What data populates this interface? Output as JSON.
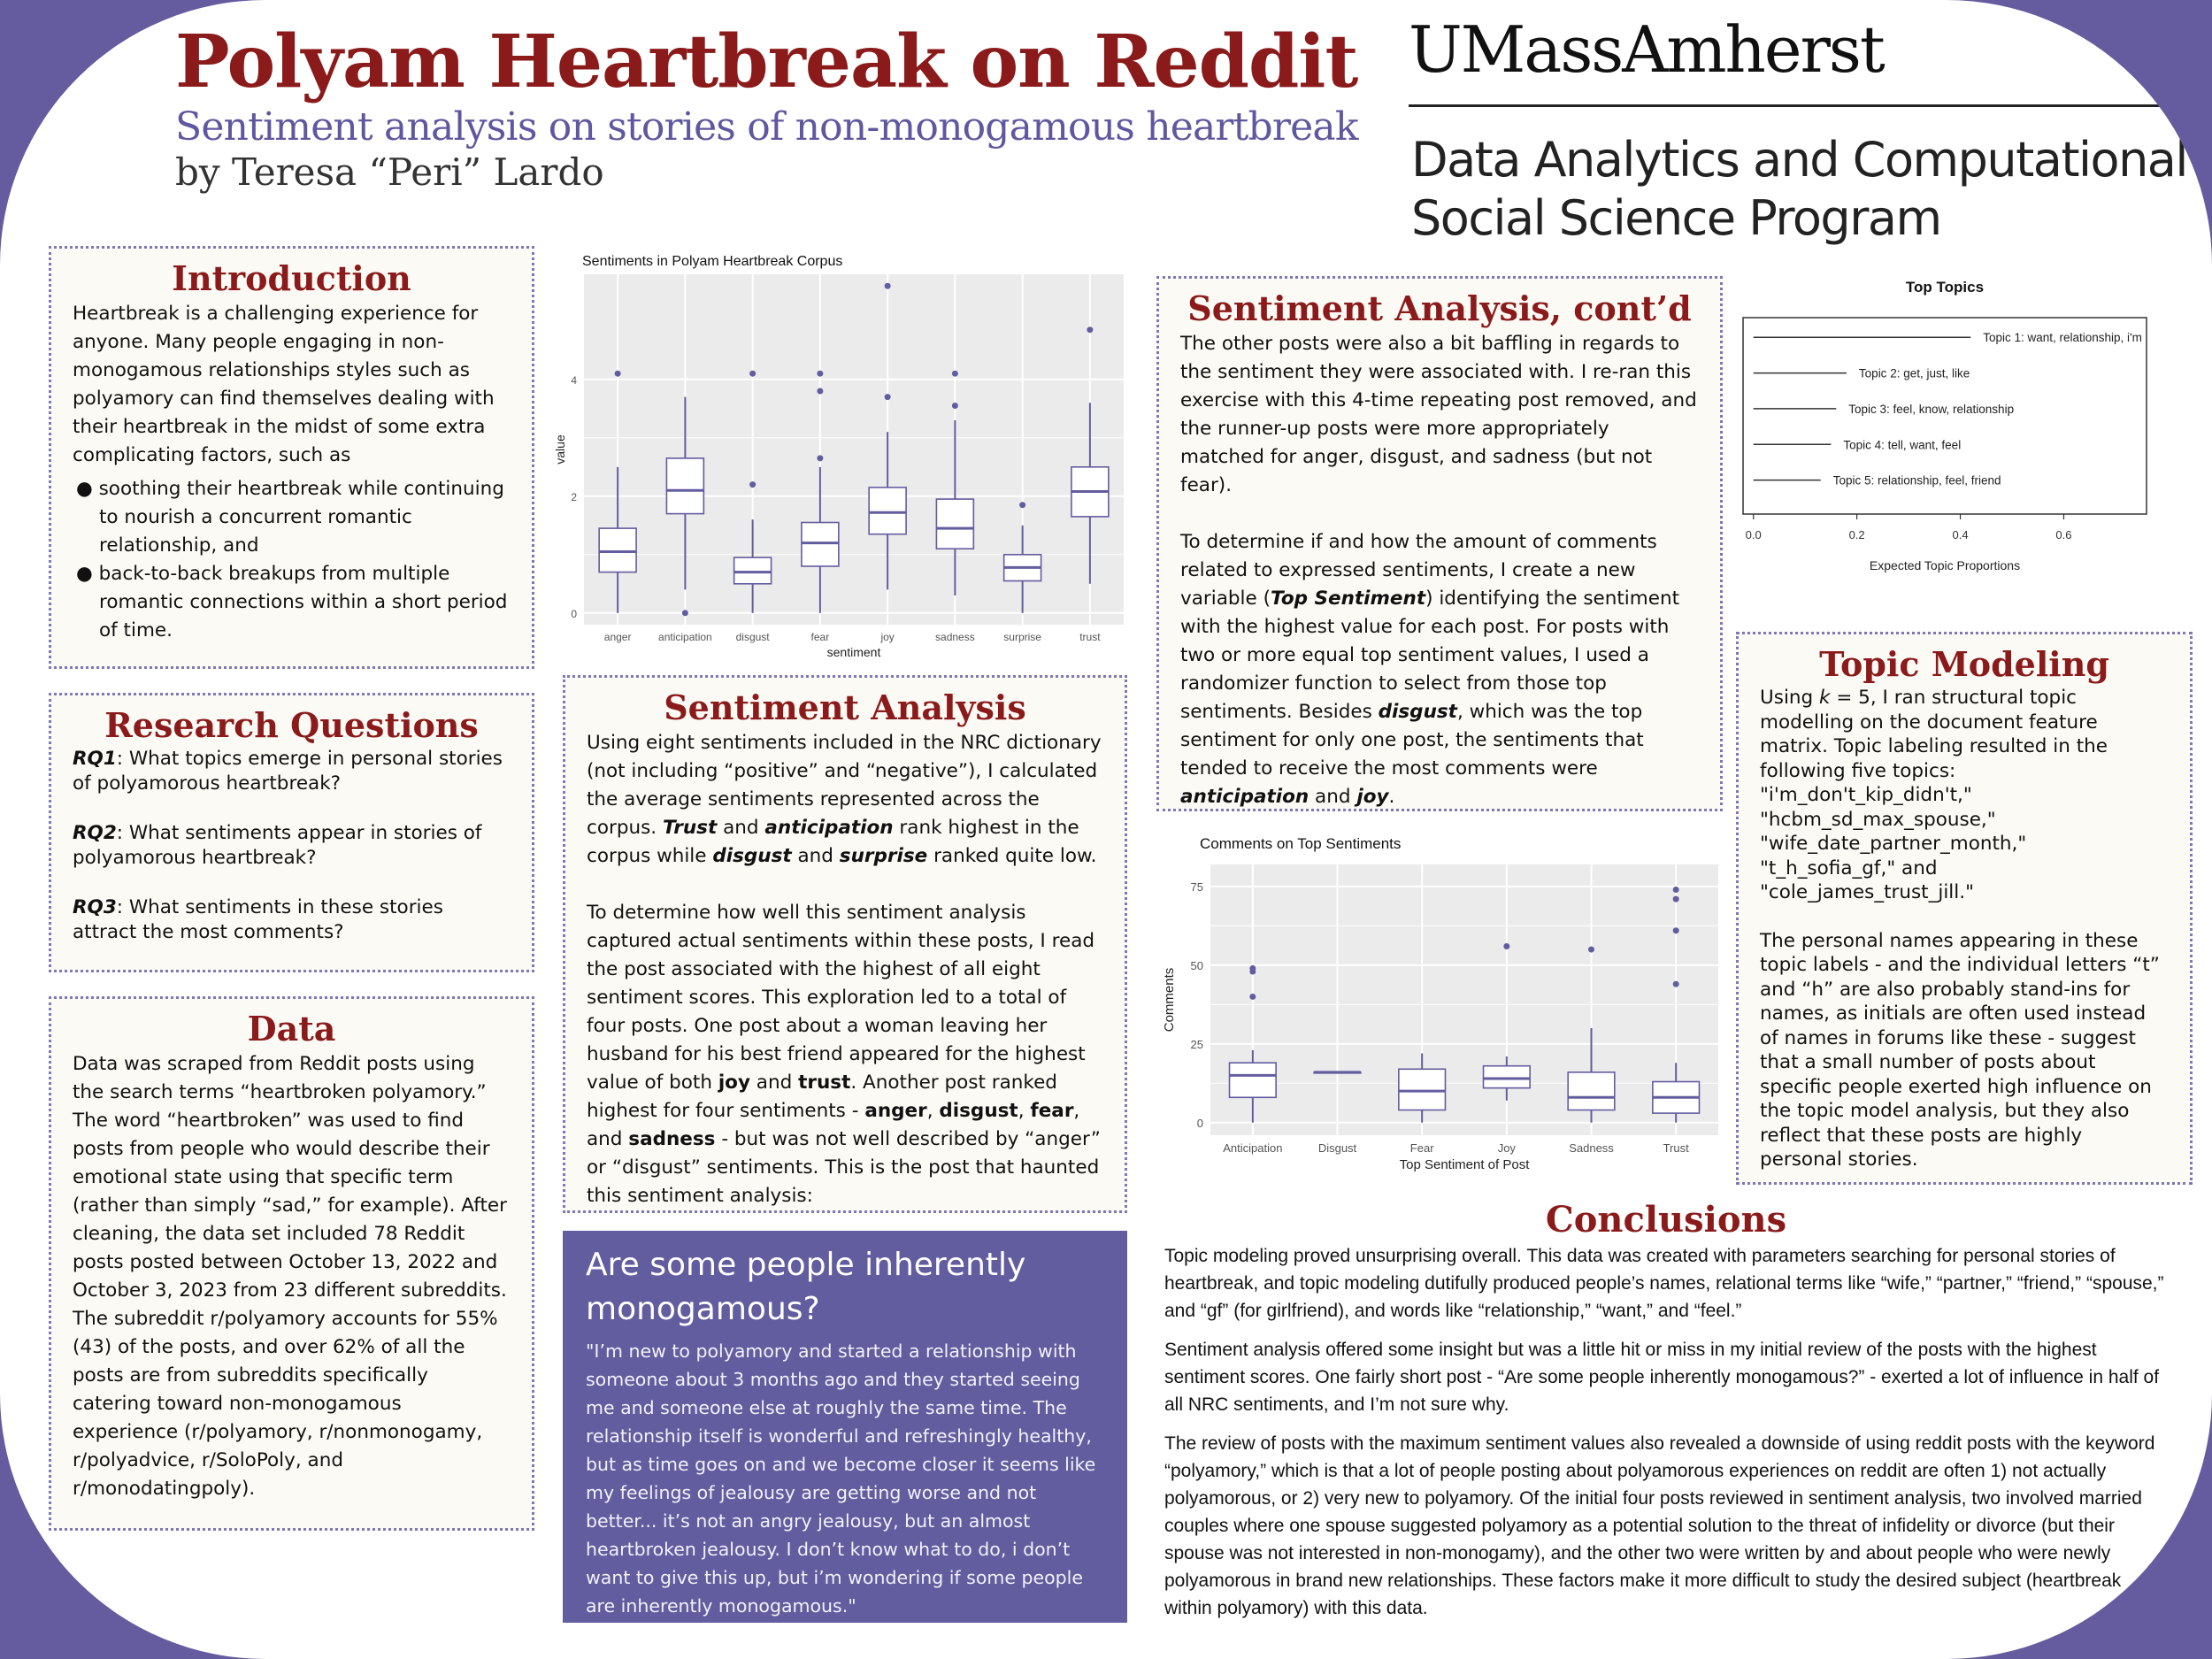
{
  "header": {
    "title": "Polyam Heartbreak on Reddit",
    "subtitle": "Sentiment analysis on stories of non-monogamous heartbreak",
    "author": "by Teresa “Peri” Lardo",
    "institution": "UMassAmherst",
    "program_line1": "Data Analytics and Computational",
    "program_line2": "Social Science Program"
  },
  "introduction": {
    "heading": "Introduction",
    "text": "Heartbreak is a challenging experience for anyone. Many people engaging in non-monogamous relationships styles such as polyamory can find themselves dealing with their heartbreak in the midst of some extra complicating factors, such as",
    "bullets": [
      "● soothing their heartbreak while continuing to nourish a concurrent romantic relationship, and",
      "● back-to-back breakups from multiple romantic connections within a short period of time."
    ]
  },
  "research": {
    "heading": "Research Questions",
    "items": [
      {
        "label": "RQ1",
        "text": ": What topics emerge in personal stories of polyamorous heartbreak?"
      },
      {
        "label": "RQ2",
        "text": ": What sentiments appear in stories of polyamorous heartbreak?"
      },
      {
        "label": "RQ3",
        "text": ": What sentiments in these stories attract the most comments?"
      }
    ]
  },
  "data_section": {
    "heading": "Data",
    "text": "Data was scraped from Reddit posts using the search terms “heartbroken polyamory.” The word “heartbroken” was used to find posts from people who would describe their emotional state using that specific term (rather than simply “sad,” for example). After cleaning, the data set included 78 Reddit posts posted between October 13, 2022 and October 3, 2023 from 23 different subreddits. The subreddit r/polyamory accounts for 55% (43) of the posts, and over 62% of all the posts are from subreddits specifically catering toward non-monogamous experience (r/polyamory, r/nonmonogamy, r/polyadvice, r/SoloPoly, and r/monodatingpoly)."
  },
  "sentiment": {
    "heading": "Sentiment Analysis",
    "p1_a": "Using eight sentiments included in the NRC dictionary (not including “positive” and “negative”), I calculated the average sentiments represented across the corpus. ",
    "p1_b": "Trust",
    "p1_c": " and ",
    "p1_d": "anticipation",
    "p1_e": " rank highest in the corpus while ",
    "p1_f": "disgust",
    "p1_g": " and ",
    "p1_h": "surprise",
    "p1_i": " ranked quite low.",
    "p2_a": "To determine how well this sentiment analysis captured actual sentiments within these posts, I read the post associated with the highest of all eight sentiment scores. This exploration led to a total of four posts. One post about a woman leaving her husband for his best friend appeared for the highest value of both ",
    "p2_b": "joy",
    "p2_c": " and ",
    "p2_d": "trust",
    "p2_e": ". Another post ranked highest for four sentiments - ",
    "p2_f": "anger",
    "p2_g": ", ",
    "p2_h": "disgust",
    "p2_i": ", ",
    "p2_j": "fear",
    "p2_k": ", and ",
    "p2_l": "sadness",
    "p2_m": " - but was not well described by “anger” or “disgust” sentiments. This is the post that haunted this sentiment analysis:"
  },
  "quote": {
    "title": "Are some people inherently monogamous?",
    "text": "\"I’m new to polyamory and started a relationship with someone about 3 months ago and they started seeing me and someone else at roughly the same time. The relationship itself is wonderful and refreshingly healthy, but as time goes on and we become closer it seems like my feelings of jealousy are getting worse and not better... it’s not an angry jealousy, but an almost heartbroken jealousy. I don’t know what to do, i don’t want to give this up, but i’m wondering if some people are inherently monogamous.\""
  },
  "sentiment_cont": {
    "heading": "Sentiment Analysis, cont’d",
    "p1": "The other posts were also a bit baffling in regards to the sentiment they were associated with. I re-ran this exercise with this 4-time repeating post removed, and the runner-up posts were more appropriately matched for anger, disgust, and sadness (but not fear).",
    "p2_a": "To determine if and how the amount of comments related to expressed sentiments, I create a new variable (",
    "p2_b": "Top Sentiment",
    "p2_c": ") identifying the sentiment with the highest value for each post. For posts with two or more equal top sentiment values, I used a randomizer function to select from those top sentiments. Besides ",
    "p2_d": "disgust",
    "p2_e": ", which was the top sentiment for only one post, the sentiments that tended to receive the most comments were ",
    "p2_f": "anticipation",
    "p2_g": " and ",
    "p2_h": "joy",
    "p2_i": "."
  },
  "topic": {
    "heading": "Topic Modeling",
    "p1_a": "Using ",
    "p1_k": "k",
    "p1_b": " = 5, I ran structural topic modelling on the document feature matrix. Topic labeling resulted in the following five topics:",
    "labels": [
      "\"i'm_don't_kip_didn't,\"",
      "\"hcbm_sd_max_spouse,\"",
      "\"wife_date_partner_month,\"",
      "\"t_h_sofia_gf,\" and",
      "\"cole_james_trust_jill.\""
    ],
    "p2": "The personal names appearing in these topic labels - and the individual letters “t” and “h” are also probably stand-ins for names, as initials are often used instead of names in forums like these - suggest that a small number of posts about specific people exerted high influence on the topic model analysis, but they also reflect that these posts are highly personal stories."
  },
  "conclusions": {
    "heading": "Conclusions",
    "paragraphs": [
      "Topic modeling proved unsurprising overall. This data was created with parameters searching for personal stories of heartbreak, and topic modeling dutifully produced people’s names, relational terms like “wife,” “partner,” “friend,” “spouse,” and “gf” (for girlfriend), and words like “relationship,” “want,” and “feel.”",
      "Sentiment analysis offered some insight but was a little hit or miss in my initial review of the posts with the highest sentiment scores. One fairly short post - “Are some people inherently monogamous?” - exerted a lot of influence in half of all NRC sentiments, and I’m not sure why.",
      "The review of posts with the maximum sentiment values also revealed a downside of using reddit posts with the keyword “polyamory,” which is that a lot of people posting about polyamorous experiences on reddit are often 1) not actually polyamorous, or 2) very new to polyamory. Of the initial four posts reviewed in sentiment analysis, two involved married couples where one spouse suggested polyamory as a potential solution to the threat of infidelity or divorce (but their spouse was not interested in non-monogamy), and the other two were written by and about people who were newly polyamorous in brand new relationships. These factors make it more difficult to study the desired subject (heartbreak within polyamory) with this data."
    ]
  },
  "chart_data": [
    {
      "type": "boxplot",
      "title": "Sentiments in Polyam Heartbreak Corpus",
      "xlabel": "sentiment",
      "ylabel": "value",
      "ylim": [
        -0.2,
        5.8
      ],
      "yticks": [
        0,
        2,
        4
      ],
      "color": "#625d9e",
      "categories": [
        "anger",
        "anticipation",
        "disgust",
        "fear",
        "joy",
        "sadness",
        "surprise",
        "trust"
      ],
      "boxes": [
        {
          "q1": 0.7,
          "median": 1.05,
          "q3": 1.45,
          "lo": 0.0,
          "hi": 2.5,
          "out": [
            4.1
          ]
        },
        {
          "q1": 1.7,
          "median": 2.1,
          "q3": 2.65,
          "lo": 0.4,
          "hi": 3.7,
          "out": [
            0.0
          ]
        },
        {
          "q1": 0.5,
          "median": 0.7,
          "q3": 0.95,
          "lo": 0.0,
          "hi": 1.6,
          "out": [
            2.2,
            4.1
          ]
        },
        {
          "q1": 0.8,
          "median": 1.2,
          "q3": 1.55,
          "lo": 0.0,
          "hi": 2.5,
          "out": [
            2.65,
            3.8,
            4.1
          ]
        },
        {
          "q1": 1.35,
          "median": 1.72,
          "q3": 2.15,
          "lo": 0.4,
          "hi": 3.1,
          "out": [
            3.7,
            5.6
          ]
        },
        {
          "q1": 1.1,
          "median": 1.45,
          "q3": 1.95,
          "lo": 0.3,
          "hi": 3.3,
          "out": [
            3.55,
            4.1
          ]
        },
        {
          "q1": 0.55,
          "median": 0.78,
          "q3": 1.0,
          "lo": 0.0,
          "hi": 1.5,
          "out": [
            1.85
          ]
        },
        {
          "q1": 1.65,
          "median": 2.08,
          "q3": 2.5,
          "lo": 0.5,
          "hi": 3.6,
          "out": [
            4.85
          ]
        }
      ]
    },
    {
      "type": "boxplot",
      "title": "Comments on Top Sentiments",
      "xlabel": "Top Sentiment of Post",
      "ylabel": "Comments",
      "ylim": [
        -4,
        82
      ],
      "yticks": [
        0,
        25,
        50,
        75
      ],
      "color": "#625d9e",
      "categories": [
        "Anticipation",
        "Disgust",
        "Fear",
        "Joy",
        "Sadness",
        "Trust"
      ],
      "boxes": [
        {
          "q1": 8,
          "median": 15,
          "q3": 19,
          "lo": 0,
          "hi": 23,
          "out": [
            40,
            48,
            49
          ]
        },
        {
          "q1": 16,
          "median": 16,
          "q3": 16,
          "lo": 16,
          "hi": 16,
          "out": []
        },
        {
          "q1": 4,
          "median": 10,
          "q3": 17,
          "lo": 0,
          "hi": 22,
          "out": []
        },
        {
          "q1": 11,
          "median": 14,
          "q3": 18,
          "lo": 7,
          "hi": 21,
          "out": [
            56
          ]
        },
        {
          "q1": 4,
          "median": 8,
          "q3": 16,
          "lo": 0,
          "hi": 30,
          "out": [
            55
          ]
        },
        {
          "q1": 3,
          "median": 8,
          "q3": 13,
          "lo": 0,
          "hi": 19,
          "out": [
            44,
            61,
            71,
            74
          ]
        }
      ]
    },
    {
      "type": "bar",
      "title": "Top Topics",
      "xlabel": "Expected Topic Proportions",
      "xlim": [
        -0.02,
        0.76
      ],
      "xticks": [
        0.0,
        0.2,
        0.4,
        0.6
      ],
      "color": "#333333",
      "categories": [
        "Topic 1: want, relationship, i'm",
        "Topic 2: get, just, like",
        "Topic 3: feel, know, relationship",
        "Topic 4: tell, want, feel",
        "Topic 5: relationship, feel, friend"
      ],
      "values": [
        0.42,
        0.18,
        0.16,
        0.15,
        0.13
      ]
    }
  ]
}
